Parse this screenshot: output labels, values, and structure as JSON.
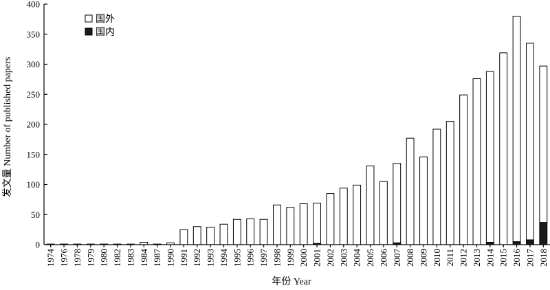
{
  "chart_data": {
    "type": "bar",
    "stacked": true,
    "xlabel": "年份 Year",
    "ylabel": "发文量 Number of published papers",
    "ylim": [
      0,
      400
    ],
    "yticks": [
      0,
      50,
      100,
      150,
      200,
      250,
      300,
      350,
      400
    ],
    "legend_position": "top-left",
    "grid": false,
    "categories": [
      "1974",
      "1976",
      "1978",
      "1979",
      "1980",
      "1982",
      "1983",
      "1984",
      "1987",
      "1990",
      "1991",
      "1992",
      "1993",
      "1994",
      "1995",
      "1996",
      "1997",
      "1998",
      "1999",
      "2000",
      "2001",
      "2002",
      "2003",
      "2004",
      "2005",
      "2006",
      "2007",
      "2008",
      "2009",
      "2010",
      "2011",
      "2012",
      "2013",
      "2014",
      "2015",
      "2016",
      "2017",
      "2018"
    ],
    "series": [
      {
        "name": "国内",
        "color": "#1a1a1a",
        "values": [
          0,
          0,
          0,
          0,
          0,
          0,
          0,
          0,
          0,
          0,
          0,
          0,
          0,
          0,
          0,
          0,
          0,
          0,
          0,
          0,
          2,
          0,
          0,
          0,
          0,
          0,
          3,
          0,
          0,
          0,
          0,
          0,
          0,
          4,
          0,
          5,
          8,
          37
        ]
      },
      {
        "name": "国外",
        "color": "#ffffff",
        "values": [
          1,
          1,
          1,
          1,
          1,
          1,
          1,
          4,
          1,
          3,
          25,
          30,
          29,
          34,
          42,
          43,
          42,
          66,
          62,
          68,
          67,
          85,
          94,
          99,
          131,
          105,
          132,
          177,
          146,
          192,
          205,
          249,
          276,
          284,
          319,
          375,
          327,
          260
        ]
      }
    ]
  }
}
